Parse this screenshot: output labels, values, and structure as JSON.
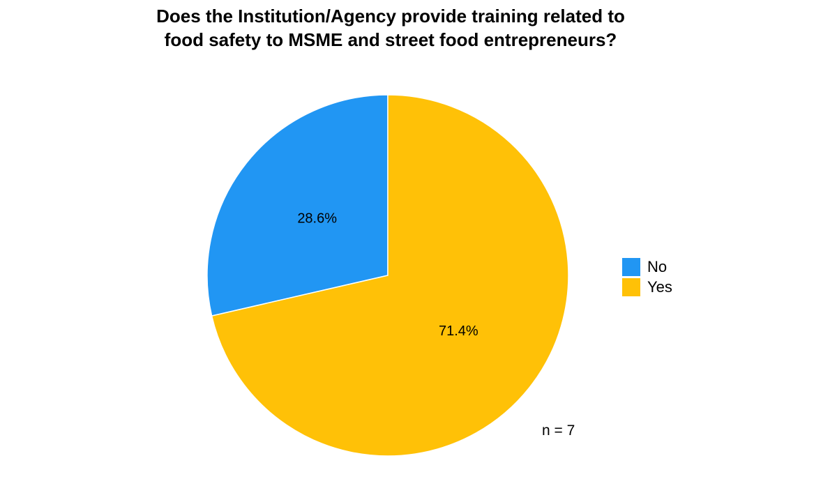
{
  "chart_data": {
    "type": "pie",
    "title_lines": [
      "Does the Institution/Agency provide training related to",
      "food safety to MSME and street food entrepreneurs?"
    ],
    "categories": [
      "No",
      "Yes"
    ],
    "values": [
      28.6,
      71.4
    ],
    "data_labels": [
      "28.6%",
      "71.4%"
    ],
    "colors": [
      "#2196F3",
      "#FFC107"
    ],
    "legend": {
      "placement": "right",
      "entries": [
        "No",
        "Yes"
      ]
    },
    "annotation": "n = 7"
  }
}
